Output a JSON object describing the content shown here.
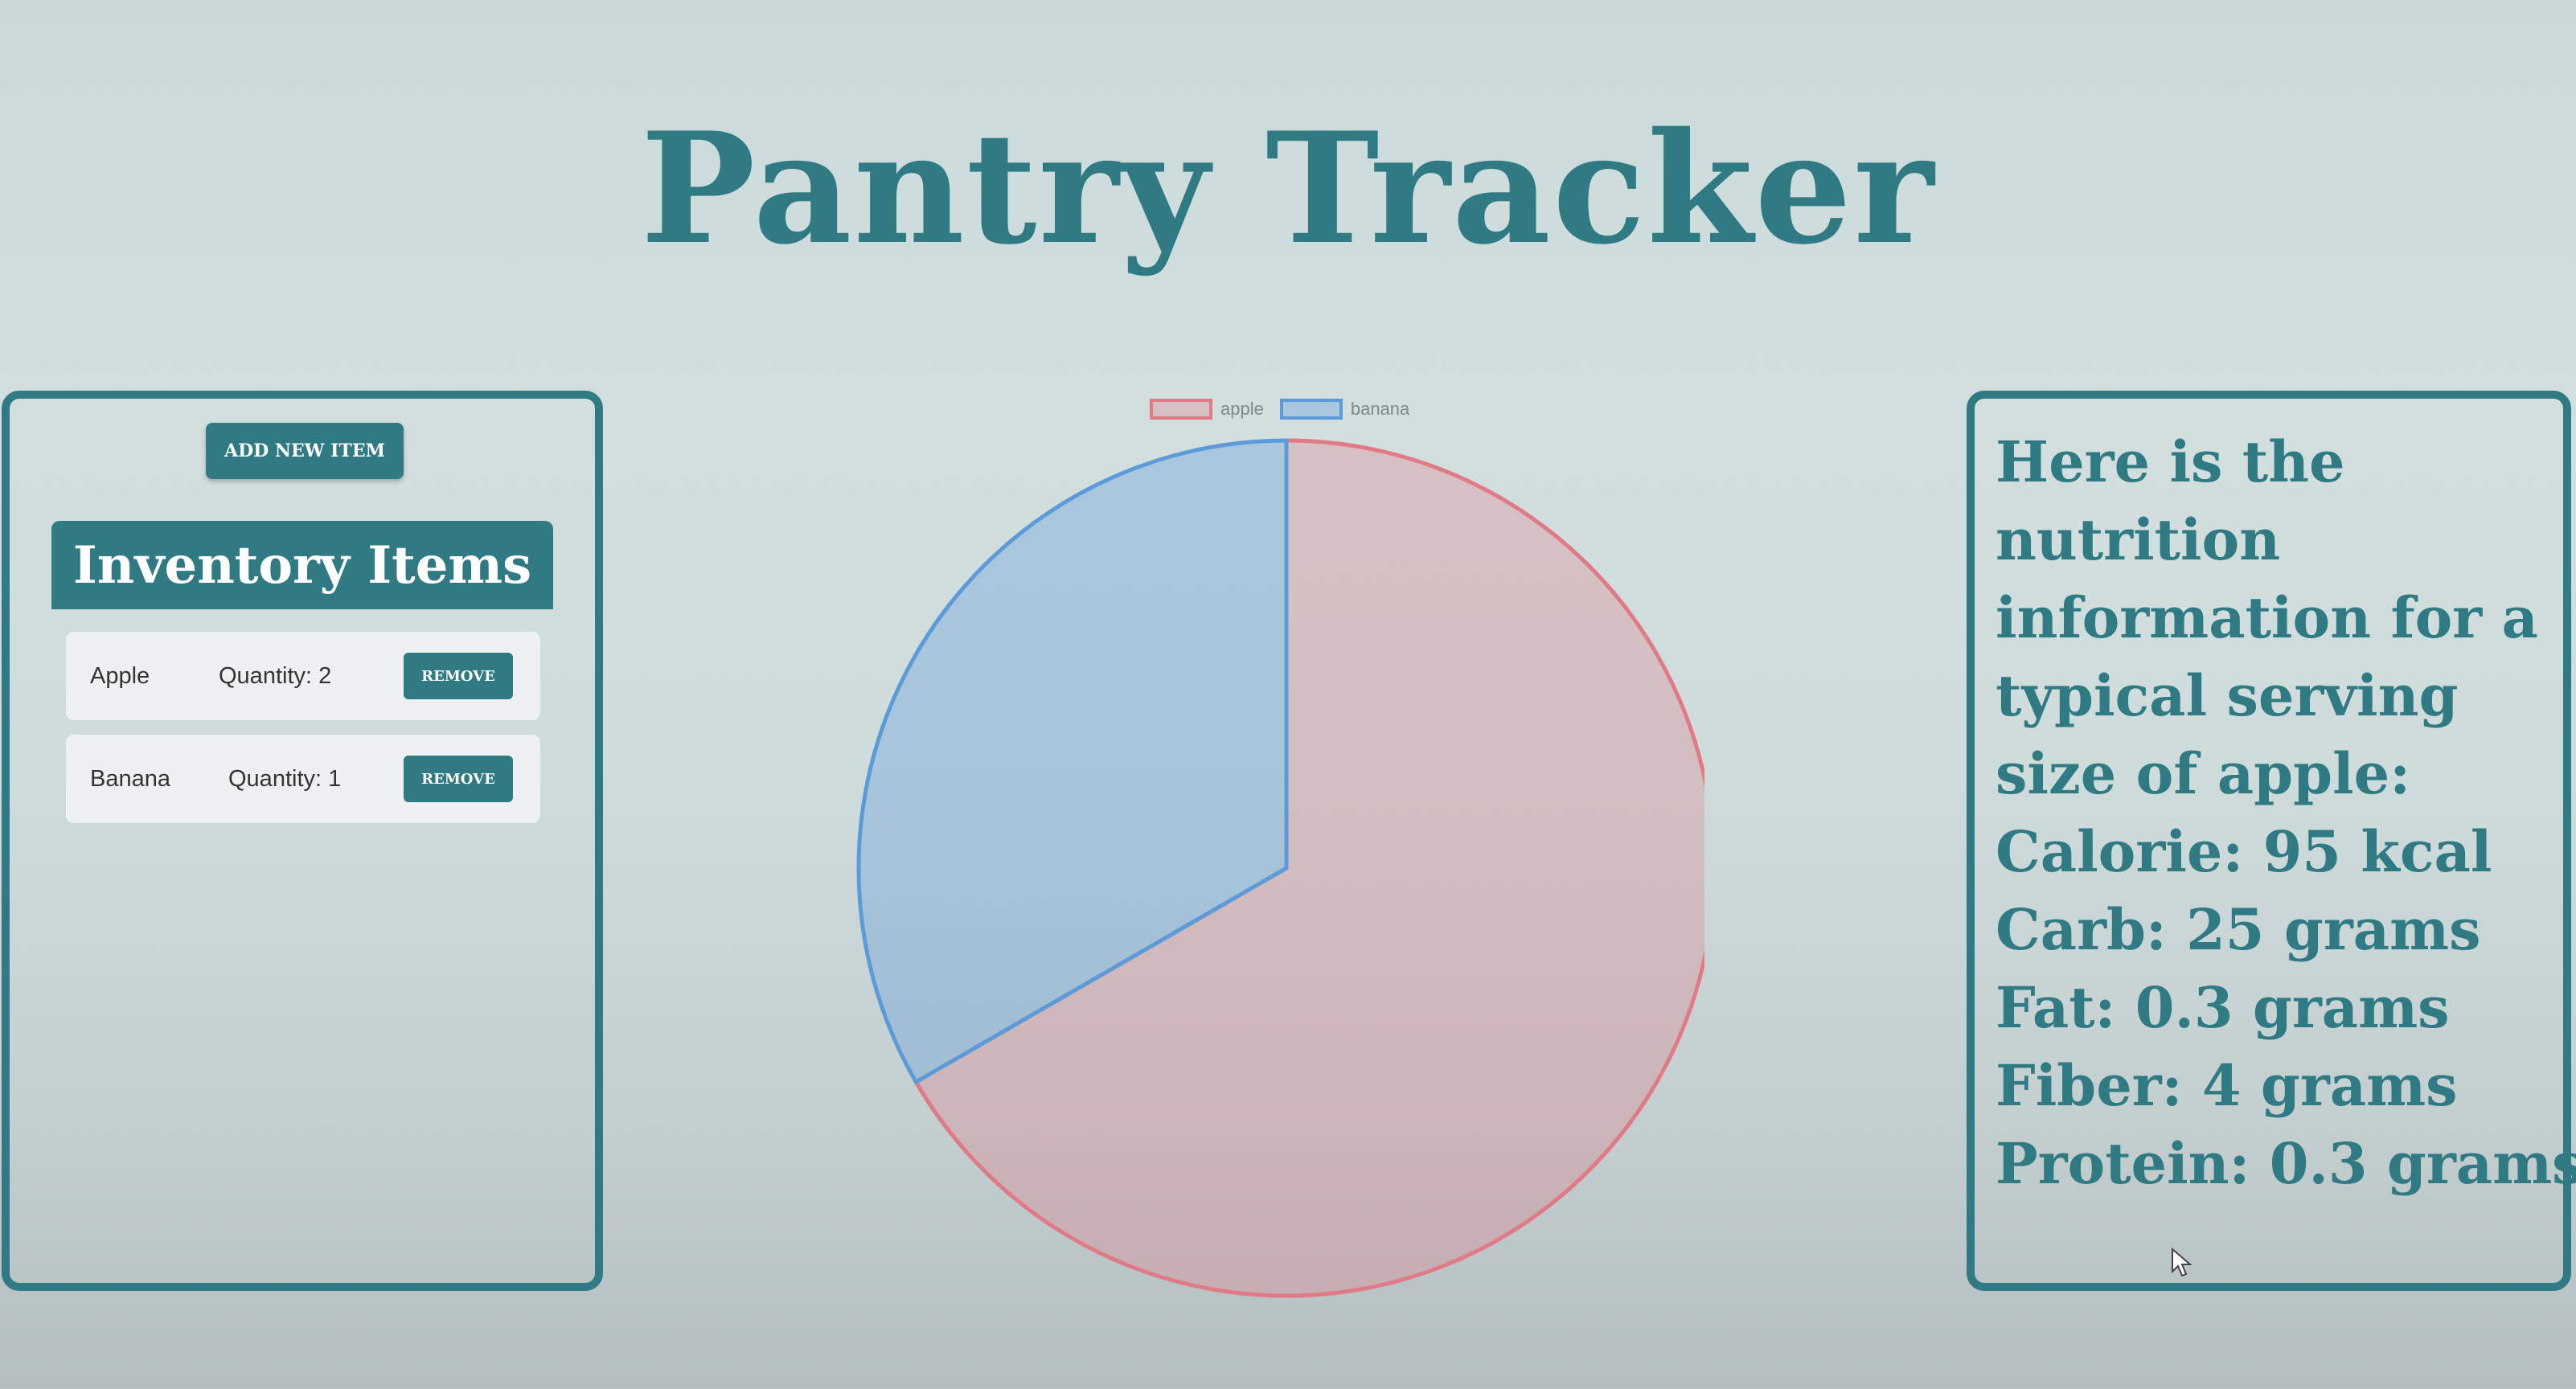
{
  "app": {
    "title": "Pantry Tracker"
  },
  "inventory": {
    "add_button_label": "ADD NEW ITEM",
    "header": "Inventory Items",
    "remove_label": "REMOVE",
    "items": [
      {
        "name": "Apple",
        "quantity_text": "Quantity: 2"
      },
      {
        "name": "Banana",
        "quantity_text": "Quantity: 1"
      }
    ]
  },
  "chart_data": {
    "type": "pie",
    "categories": [
      "apple",
      "banana"
    ],
    "values": [
      2,
      1
    ],
    "legend_position": "top",
    "colors": {
      "apple": "#e07a86",
      "banana": "#5b9bd9"
    }
  },
  "nutrition": {
    "lines": [
      "Here is the",
      "nutrition",
      "information for a",
      "typical serving",
      "size of apple:",
      "Calorie: 95 kcal",
      "Carb: 25 grams",
      "Fat: 0.3 grams",
      "Fiber: 4 grams",
      "Protein: 0.3 grams"
    ]
  },
  "theme": {
    "accent": "#2f7a83"
  }
}
